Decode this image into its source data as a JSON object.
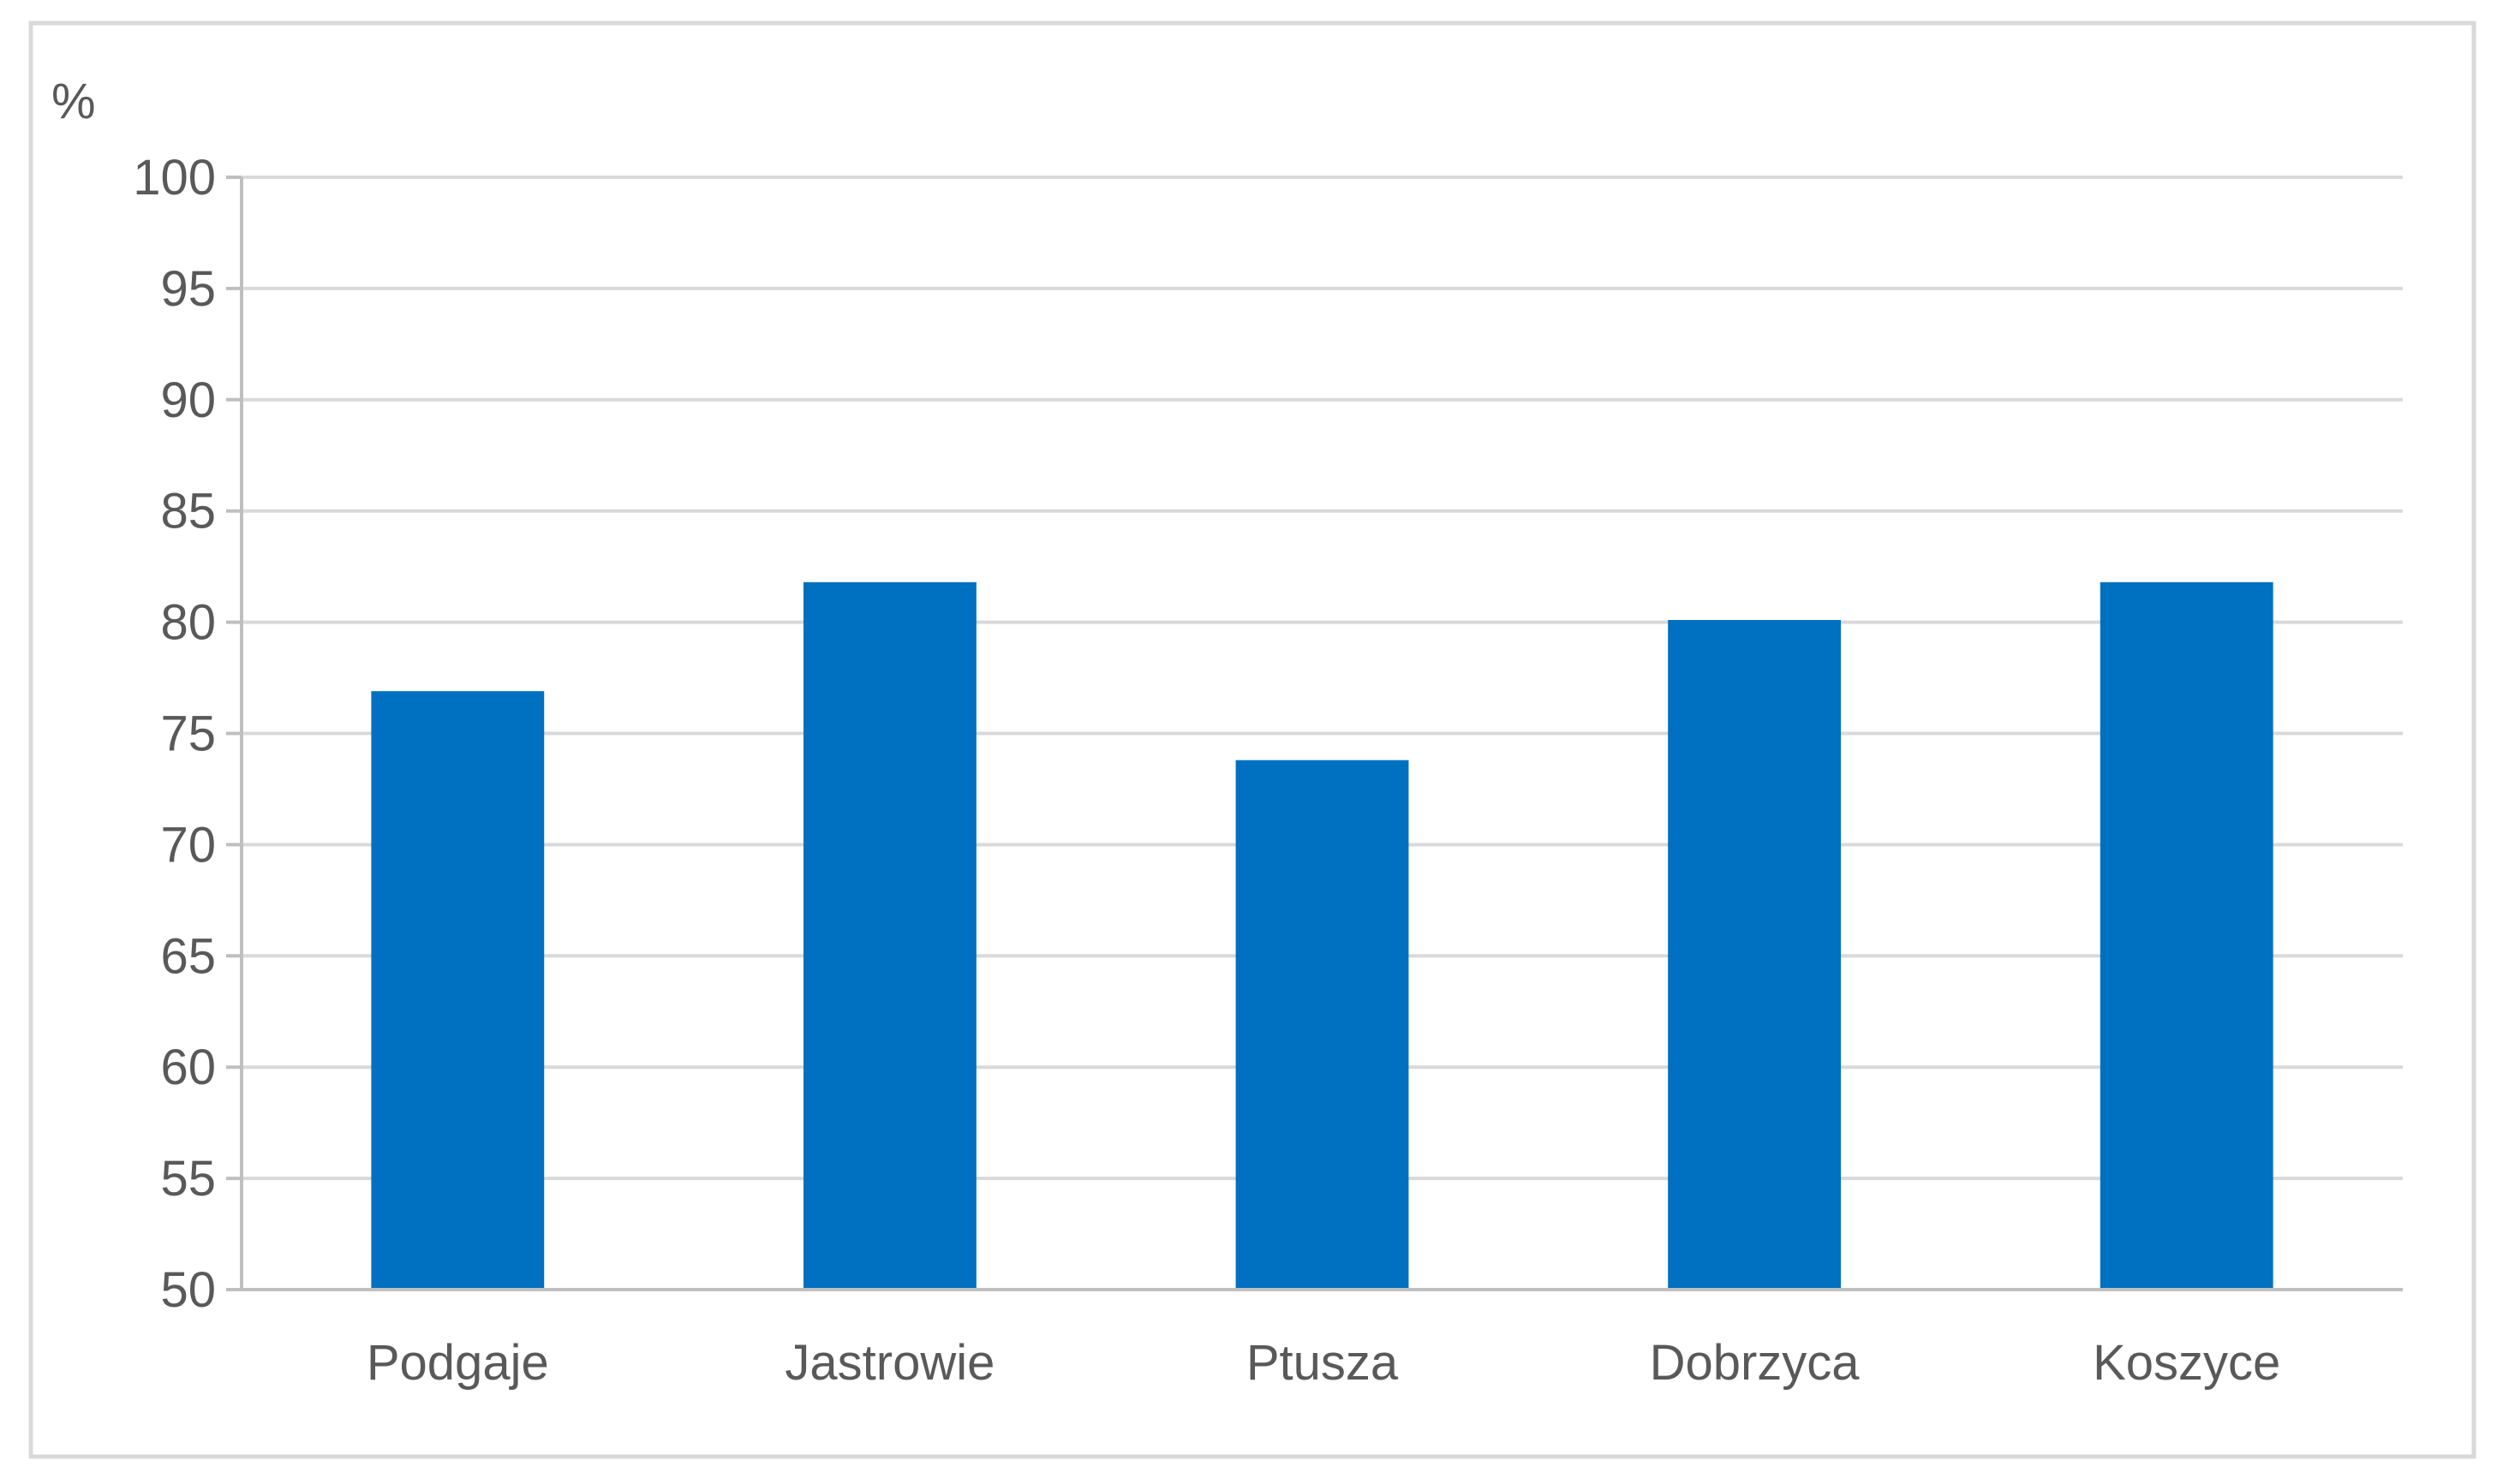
{
  "chart_data": {
    "type": "bar",
    "title": "",
    "xlabel": "",
    "ylabel": "%",
    "ylim": [
      50,
      100
    ],
    "ytick_step": 5,
    "grid": true,
    "legend": "none",
    "categories": [
      "Podgaje",
      "Jastrowie",
      "Ptusza",
      "Dobrzyca",
      "Koszyce"
    ],
    "values": [
      76.9,
      81.8,
      73.8,
      80.1,
      81.8
    ],
    "colors": {
      "bar": "#0070C0",
      "grid": "#D9D9D9",
      "axis": "#BFBFBF",
      "frame": "#D9D9D9",
      "text": "#595959"
    }
  }
}
